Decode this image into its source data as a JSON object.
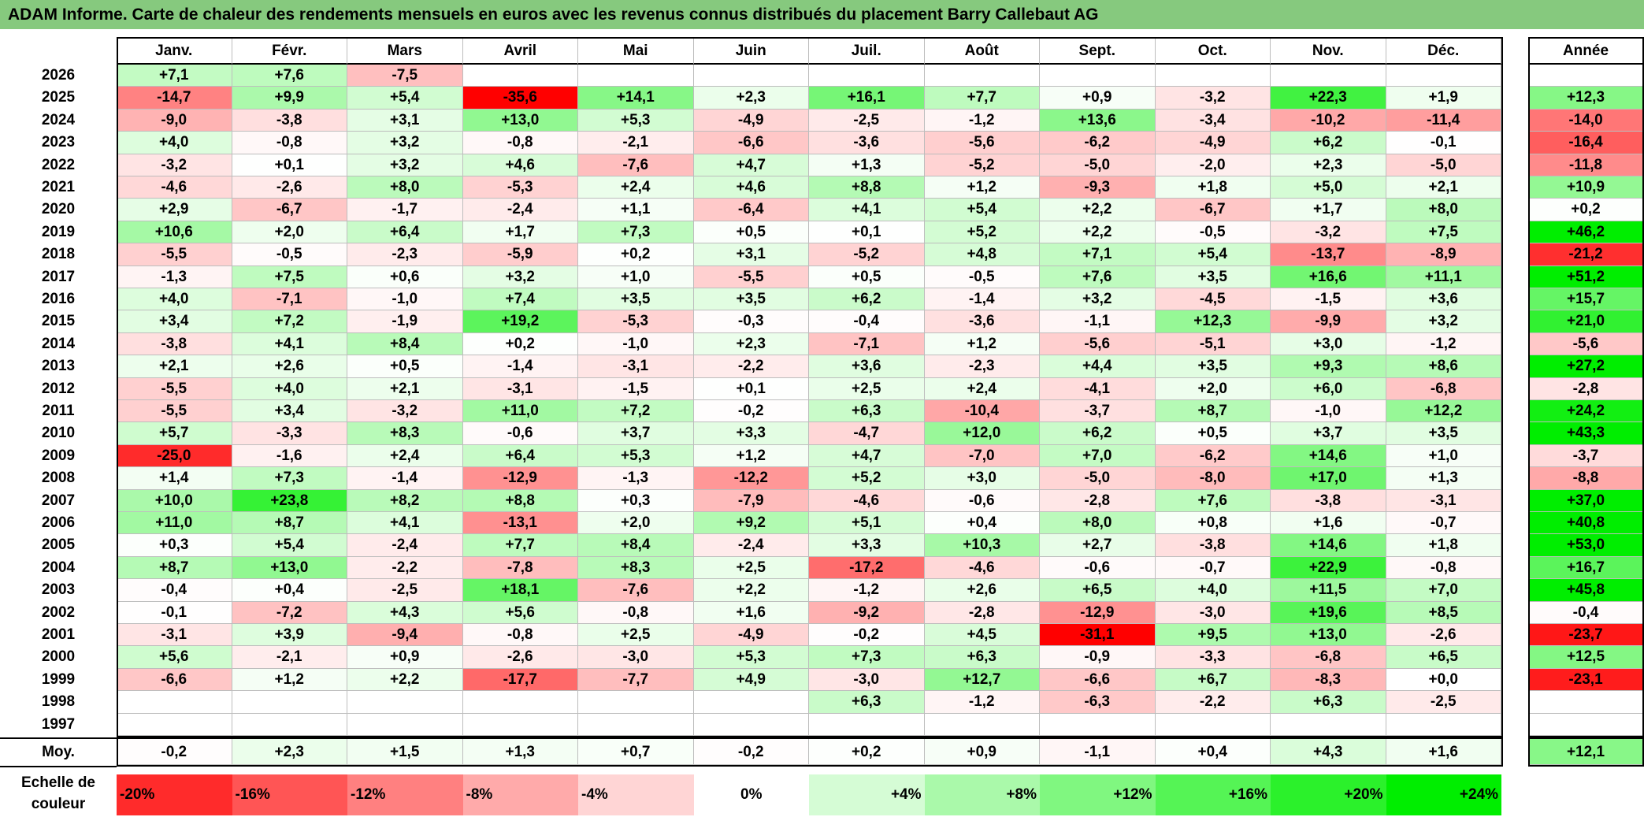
{
  "title": "ADAM Informe. Carte de chaleur des rendements mensuels en euros avec les revenus connus distribués du placement Barry Callebaut AG",
  "chart_data": {
    "type": "heatmap",
    "title": "ADAM Informe. Carte de chaleur des rendements mensuels en euros avec les revenus connus distribués du placement Barry Callebaut AG",
    "columns": [
      "Janv.",
      "Févr.",
      "Mars",
      "Avril",
      "Mai",
      "Juin",
      "Juil.",
      "Août",
      "Sept.",
      "Oct.",
      "Nov.",
      "Déc."
    ],
    "year_column_label": "Année",
    "rows": [
      {
        "year": "2026",
        "months": [
          "+7,1",
          "+7,6",
          "-7,5",
          "",
          "",
          "",
          "",
          "",
          "",
          "",
          "",
          ""
        ],
        "annual": ""
      },
      {
        "year": "2025",
        "months": [
          "-14,7",
          "+9,9",
          "+5,4",
          "-35,6",
          "+14,1",
          "+2,3",
          "+16,1",
          "+7,7",
          "+0,9",
          "-3,2",
          "+22,3",
          "+1,9"
        ],
        "annual": "+12,3"
      },
      {
        "year": "2024",
        "months": [
          "-9,0",
          "-3,8",
          "+3,1",
          "+13,0",
          "+5,3",
          "-4,9",
          "-2,5",
          "-1,2",
          "+13,6",
          "-3,4",
          "-10,2",
          "-11,4"
        ],
        "annual": "-14,0"
      },
      {
        "year": "2023",
        "months": [
          "+4,0",
          "-0,8",
          "+3,2",
          "-0,8",
          "-2,1",
          "-6,6",
          "-3,6",
          "-5,6",
          "-6,2",
          "-4,9",
          "+6,2",
          "-0,1"
        ],
        "annual": "-16,4"
      },
      {
        "year": "2022",
        "months": [
          "-3,2",
          "+0,1",
          "+3,2",
          "+4,6",
          "-7,6",
          "+4,7",
          "+1,3",
          "-5,2",
          "-5,0",
          "-2,0",
          "+2,3",
          "-5,0"
        ],
        "annual": "-11,8"
      },
      {
        "year": "2021",
        "months": [
          "-4,6",
          "-2,6",
          "+8,0",
          "-5,3",
          "+2,4",
          "+4,6",
          "+8,8",
          "+1,2",
          "-9,3",
          "+1,8",
          "+5,0",
          "+2,1"
        ],
        "annual": "+10,9"
      },
      {
        "year": "2020",
        "months": [
          "+2,9",
          "-6,7",
          "-1,7",
          "-2,4",
          "+1,1",
          "-6,4",
          "+4,1",
          "+5,4",
          "+2,2",
          "-6,7",
          "+1,7",
          "+8,0"
        ],
        "annual": "+0,2"
      },
      {
        "year": "2019",
        "months": [
          "+10,6",
          "+2,0",
          "+6,4",
          "+1,7",
          "+7,3",
          "+0,5",
          "+0,1",
          "+5,2",
          "+2,2",
          "-0,5",
          "-3,2",
          "+7,5"
        ],
        "annual": "+46,2"
      },
      {
        "year": "2018",
        "months": [
          "-5,5",
          "-0,5",
          "-2,3",
          "-5,9",
          "+0,2",
          "+3,1",
          "-5,2",
          "+4,8",
          "+7,1",
          "+5,4",
          "-13,7",
          "-8,9"
        ],
        "annual": "-21,2"
      },
      {
        "year": "2017",
        "months": [
          "-1,3",
          "+7,5",
          "+0,6",
          "+3,2",
          "+1,0",
          "-5,5",
          "+0,5",
          "-0,5",
          "+7,6",
          "+3,5",
          "+16,6",
          "+11,1"
        ],
        "annual": "+51,2"
      },
      {
        "year": "2016",
        "months": [
          "+4,0",
          "-7,1",
          "-1,0",
          "+7,4",
          "+3,5",
          "+3,5",
          "+6,2",
          "-1,4",
          "+3,2",
          "-4,5",
          "-1,5",
          "+3,6"
        ],
        "annual": "+15,7"
      },
      {
        "year": "2015",
        "months": [
          "+3,4",
          "+7,2",
          "-1,9",
          "+19,2",
          "-5,3",
          "-0,3",
          "-0,4",
          "-3,6",
          "-1,1",
          "+12,3",
          "-9,9",
          "+3,2"
        ],
        "annual": "+21,0"
      },
      {
        "year": "2014",
        "months": [
          "-3,8",
          "+4,1",
          "+8,4",
          "+0,2",
          "-1,0",
          "+2,3",
          "-7,1",
          "+1,2",
          "-5,6",
          "-5,1",
          "+3,0",
          "-1,2"
        ],
        "annual": "-5,6"
      },
      {
        "year": "2013",
        "months": [
          "+2,1",
          "+2,6",
          "+0,5",
          "-1,4",
          "-3,1",
          "-2,2",
          "+3,6",
          "-2,3",
          "+4,4",
          "+3,5",
          "+9,3",
          "+8,6"
        ],
        "annual": "+27,2"
      },
      {
        "year": "2012",
        "months": [
          "-5,5",
          "+4,0",
          "+2,1",
          "-3,1",
          "-1,5",
          "+0,1",
          "+2,5",
          "+2,4",
          "-4,1",
          "+2,0",
          "+6,0",
          "-6,8"
        ],
        "annual": "-2,8"
      },
      {
        "year": "2011",
        "months": [
          "-5,5",
          "+3,4",
          "-3,2",
          "+11,0",
          "+7,2",
          "-0,2",
          "+6,3",
          "-10,4",
          "-3,7",
          "+8,7",
          "-1,0",
          "+12,2"
        ],
        "annual": "+24,2"
      },
      {
        "year": "2010",
        "months": [
          "+5,7",
          "-3,3",
          "+8,3",
          "-0,6",
          "+3,7",
          "+3,3",
          "-4,7",
          "+12,0",
          "+6,2",
          "+0,5",
          "+3,7",
          "+3,5"
        ],
        "annual": "+43,3"
      },
      {
        "year": "2009",
        "months": [
          "-25,0",
          "-1,6",
          "+2,4",
          "+6,4",
          "+5,3",
          "+1,2",
          "+4,7",
          "-7,0",
          "+7,0",
          "-6,2",
          "+14,6",
          "+1,0"
        ],
        "annual": "-3,7"
      },
      {
        "year": "2008",
        "months": [
          "+1,4",
          "+7,3",
          "-1,4",
          "-12,9",
          "-1,3",
          "-12,2",
          "+5,2",
          "+3,0",
          "-5,0",
          "-8,0",
          "+17,0",
          "+1,3"
        ],
        "annual": "-8,8"
      },
      {
        "year": "2007",
        "months": [
          "+10,0",
          "+23,8",
          "+8,2",
          "+8,8",
          "+0,3",
          "-7,9",
          "-4,6",
          "-0,6",
          "-2,8",
          "+7,6",
          "-3,8",
          "-3,1"
        ],
        "annual": "+37,0"
      },
      {
        "year": "2006",
        "months": [
          "+11,0",
          "+8,7",
          "+4,1",
          "-13,1",
          "+2,0",
          "+9,2",
          "+5,1",
          "+0,4",
          "+8,0",
          "+0,8",
          "+1,6",
          "-0,7"
        ],
        "annual": "+40,8"
      },
      {
        "year": "2005",
        "months": [
          "+0,3",
          "+5,4",
          "-2,4",
          "+7,7",
          "+8,4",
          "-2,4",
          "+3,3",
          "+10,3",
          "+2,7",
          "-3,8",
          "+14,6",
          "+1,8"
        ],
        "annual": "+53,0"
      },
      {
        "year": "2004",
        "months": [
          "+8,7",
          "+13,0",
          "-2,2",
          "-7,8",
          "+8,3",
          "+2,5",
          "-17,2",
          "-4,6",
          "-0,6",
          "-0,7",
          "+22,9",
          "-0,8"
        ],
        "annual": "+16,7"
      },
      {
        "year": "2003",
        "months": [
          "-0,4",
          "+0,4",
          "-2,5",
          "+18,1",
          "-7,6",
          "+2,2",
          "-1,2",
          "+2,6",
          "+6,5",
          "+4,0",
          "+11,5",
          "+7,0"
        ],
        "annual": "+45,8"
      },
      {
        "year": "2002",
        "months": [
          "-0,1",
          "-7,2",
          "+4,3",
          "+5,6",
          "-0,8",
          "+1,6",
          "-9,2",
          "-2,8",
          "-12,9",
          "-3,0",
          "+19,6",
          "+8,5"
        ],
        "annual": "-0,4"
      },
      {
        "year": "2001",
        "months": [
          "-3,1",
          "+3,9",
          "-9,4",
          "-0,8",
          "+2,5",
          "-4,9",
          "-0,2",
          "+4,5",
          "-31,1",
          "+9,5",
          "+13,0",
          "-2,6"
        ],
        "annual": "-23,7"
      },
      {
        "year": "2000",
        "months": [
          "+5,6",
          "-2,1",
          "+0,9",
          "-2,6",
          "-3,0",
          "+5,3",
          "+7,3",
          "+6,3",
          "-0,9",
          "-3,3",
          "-6,8",
          "+6,5"
        ],
        "annual": "+12,5"
      },
      {
        "year": "1999",
        "months": [
          "-6,6",
          "+1,2",
          "+2,2",
          "-17,7",
          "-7,7",
          "+4,9",
          "-3,0",
          "+12,7",
          "-6,6",
          "+6,7",
          "-8,3",
          "+0,0"
        ],
        "annual": "-23,1"
      },
      {
        "year": "1998",
        "months": [
          "",
          "",
          "",
          "",
          "",
          "",
          "+6,3",
          "-1,2",
          "-6,3",
          "-2,2",
          "+6,3",
          "-2,5"
        ],
        "annual": ""
      },
      {
        "year": "1997",
        "months": [
          "",
          "",
          "",
          "",
          "",
          "",
          "",
          "",
          "",
          "",
          "",
          ""
        ],
        "annual": ""
      }
    ],
    "average": {
      "label": "Moy.",
      "months": [
        "-0,2",
        "+2,3",
        "+1,5",
        "+1,3",
        "+0,7",
        "-0,2",
        "+0,2",
        "+0,9",
        "-1,1",
        "+0,4",
        "+4,3",
        "+1,6"
      ],
      "annual": "+12,1"
    },
    "color_scale": {
      "label": "Echelle de couleur",
      "stops": [
        "-20%",
        "-16%",
        "-12%",
        "-8%",
        "-4%",
        "0%",
        "+4%",
        "+8%",
        "+12%",
        "+16%",
        "+20%",
        "+24%"
      ],
      "negative_color": "#ff0000",
      "positive_color": "#00ee00",
      "neutral_color": "#ffffff"
    },
    "colors": {
      "title_bar": "#86c97e"
    }
  }
}
